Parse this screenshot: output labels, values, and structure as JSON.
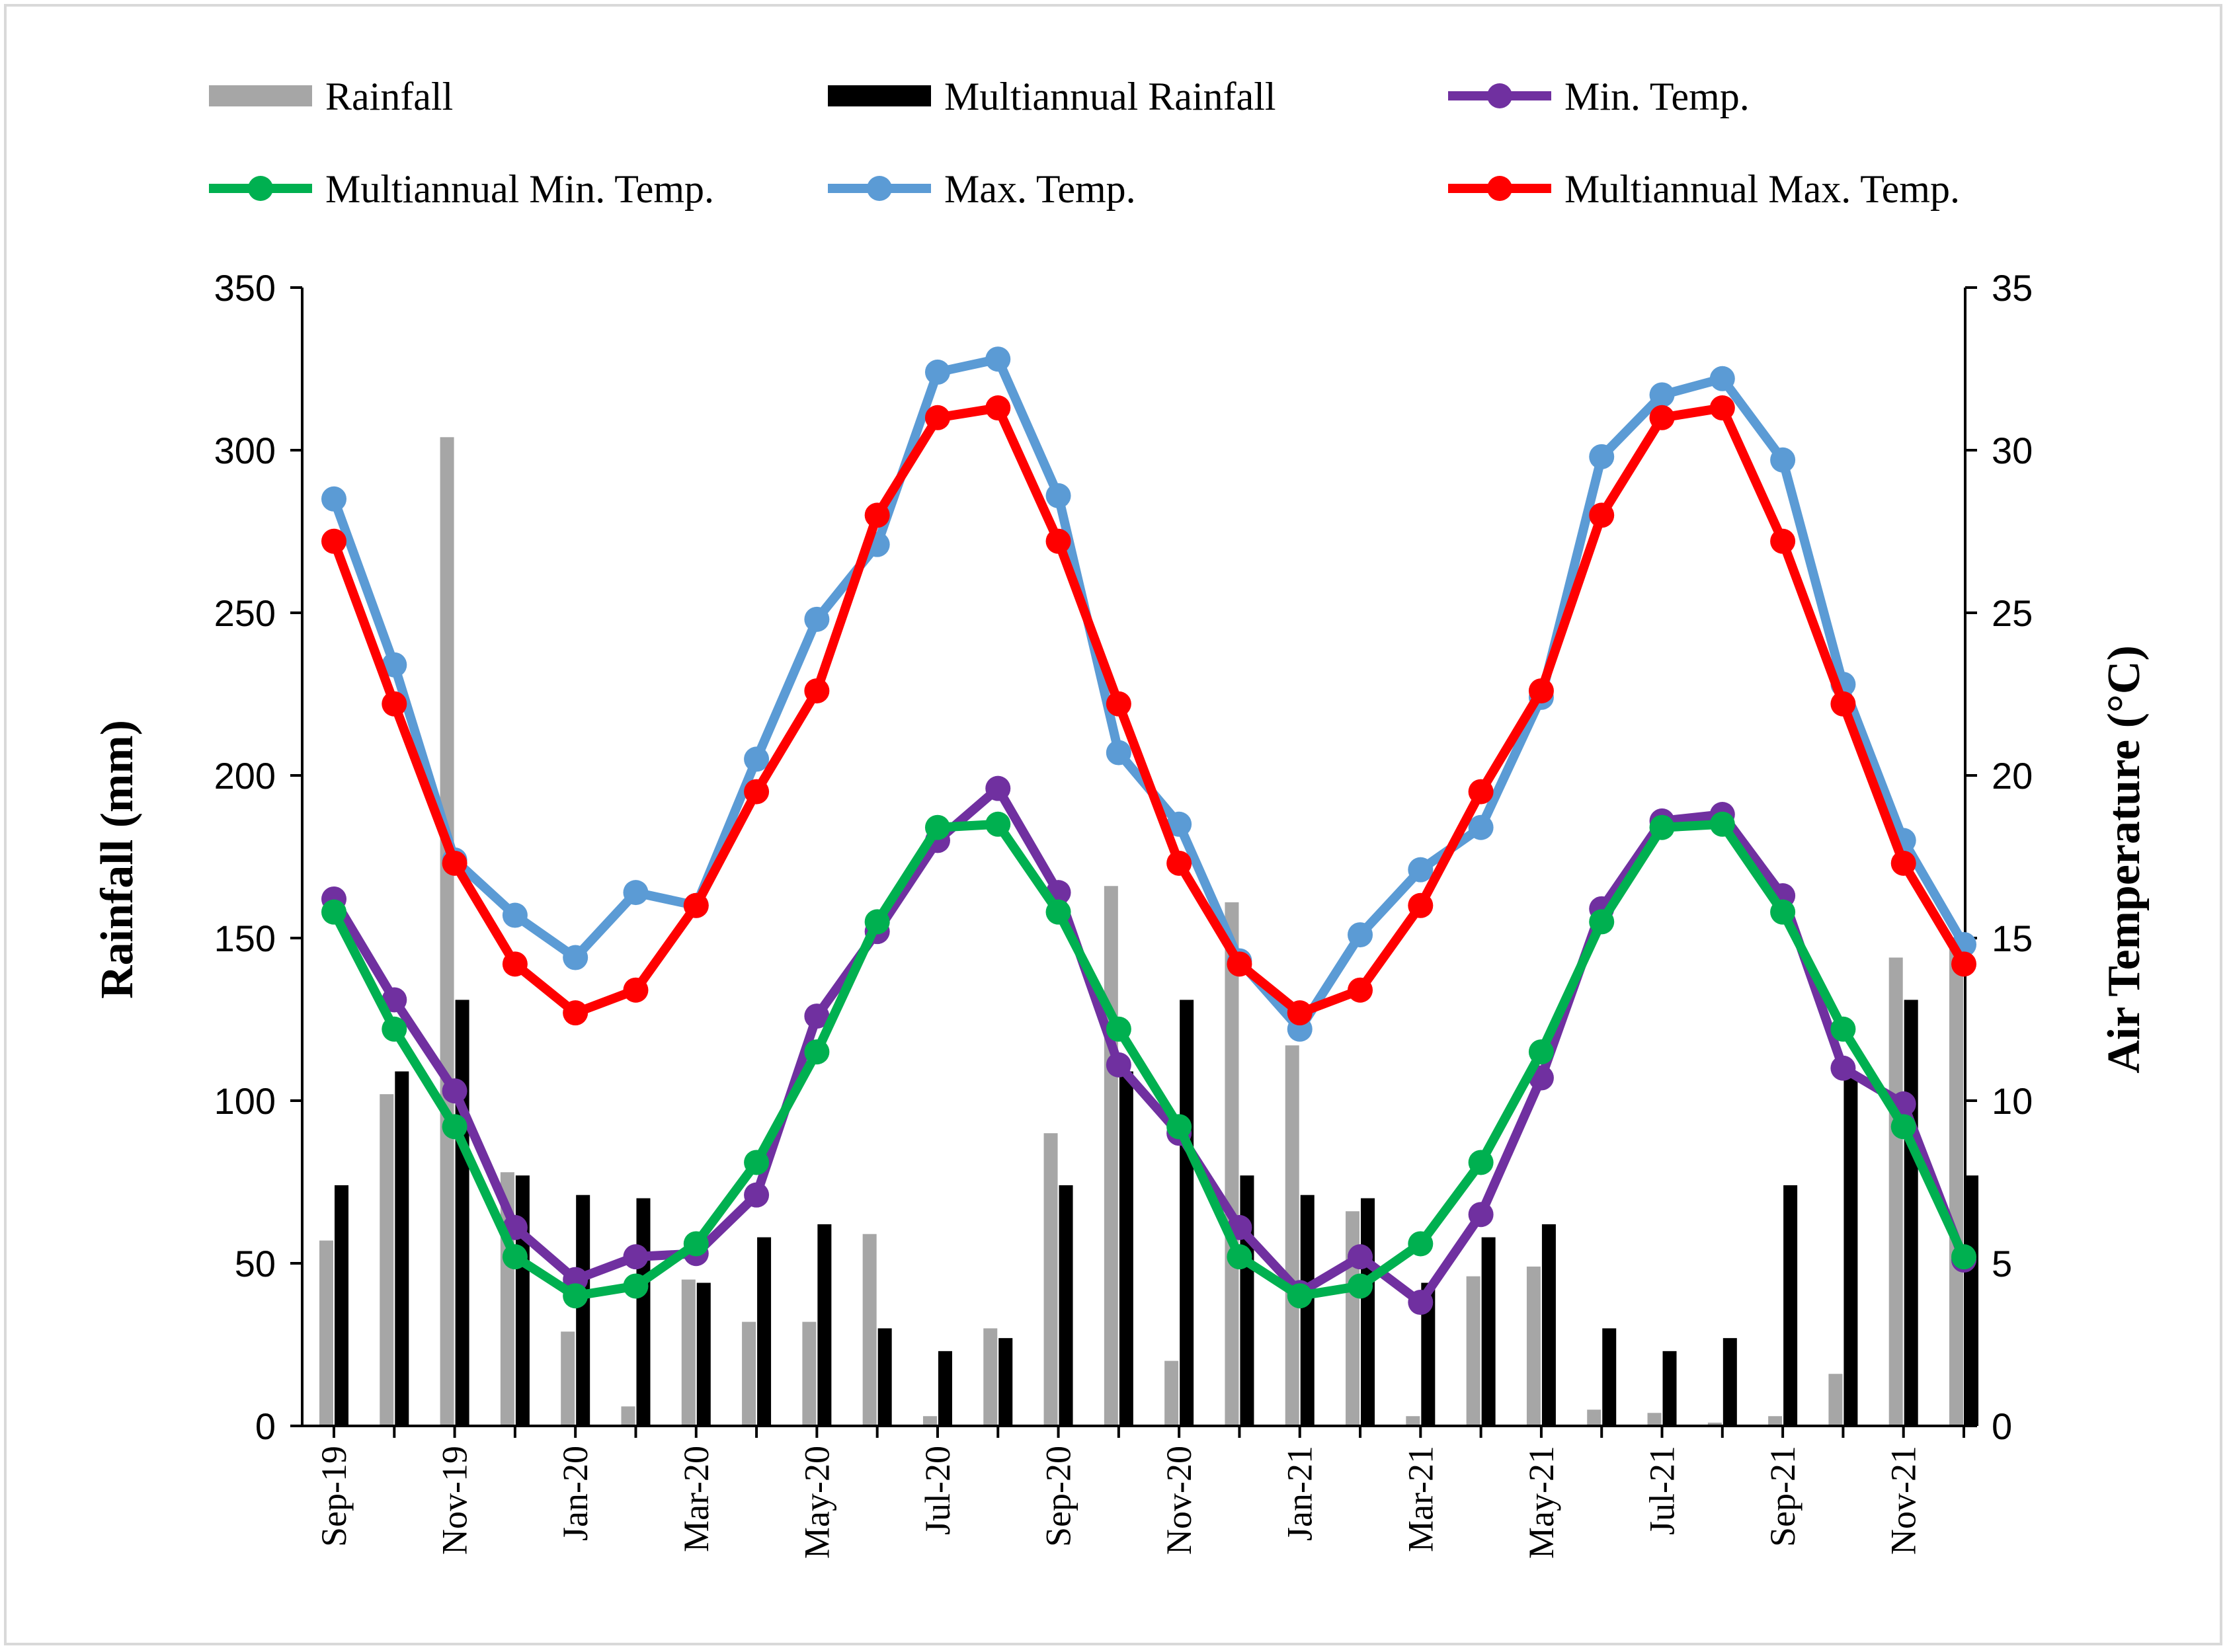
{
  "chart_data": {
    "type": "bar",
    "categories": [
      "Sep-19",
      "Oct-19",
      "Nov-19",
      "Dec-19",
      "Jan-20",
      "Feb-20",
      "Mar-20",
      "Apr-20",
      "May-20",
      "Jun-20",
      "Jul-20",
      "Aug-20",
      "Sep-20",
      "Oct-20",
      "Nov-20",
      "Dec-20",
      "Jan-21",
      "Feb-21",
      "Mar-21",
      "Apr-21",
      "May-21",
      "Jun-21",
      "Jul-21",
      "Aug-21",
      "Sep-21",
      "Oct-21",
      "Nov-21",
      "Dec-21"
    ],
    "tick_labels": [
      "Sep-19",
      "Nov-19",
      "Jan-20",
      "Mar-20",
      "May-20",
      "Jul-20",
      "Sep-20",
      "Nov-20",
      "Jan-21",
      "Mar-21",
      "May-21",
      "Jul-21",
      "Sep-21",
      "Nov-21"
    ],
    "ylabel": "Rainfall (mm)",
    "y2label": "Air Temperature (°C)",
    "ylim": [
      0,
      350
    ],
    "y2lim": [
      0,
      35
    ],
    "yticks": [
      0,
      50,
      100,
      150,
      200,
      250,
      300,
      350
    ],
    "y2ticks": [
      0,
      5,
      10,
      15,
      20,
      25,
      30,
      35
    ],
    "legend_position": "top",
    "series": [
      {
        "name": "Rainfall",
        "kind": "bar",
        "axis": "left",
        "color": "#a6a6a6",
        "values": [
          57,
          102,
          304,
          78,
          29,
          6,
          45,
          32,
          32,
          59,
          3,
          30,
          90,
          166,
          20,
          161,
          117,
          66,
          3,
          46,
          49,
          5,
          4,
          1,
          3,
          16,
          144,
          150
        ]
      },
      {
        "name": "Multiannual Rainfall",
        "kind": "bar",
        "axis": "left",
        "color": "#000000",
        "values": [
          74,
          109,
          131,
          77,
          71,
          70,
          44,
          58,
          62,
          30,
          23,
          27,
          74,
          109,
          131,
          77,
          71,
          70,
          44,
          58,
          62,
          30,
          23,
          27,
          74,
          109,
          131,
          77
        ]
      },
      {
        "name": "Min. Temp.",
        "kind": "line",
        "axis": "right",
        "color": "#7030a0",
        "values": [
          16.2,
          13.1,
          10.3,
          6.1,
          4.5,
          5.2,
          5.3,
          7.1,
          12.6,
          15.2,
          18.0,
          19.6,
          16.4,
          11.1,
          9.0,
          6.1,
          4.1,
          5.2,
          3.8,
          6.5,
          10.7,
          15.9,
          18.6,
          18.8,
          16.3,
          11.0,
          9.9,
          5.1
        ]
      },
      {
        "name": "Multiannual Min. Temp.",
        "kind": "line",
        "axis": "right",
        "color": "#00b050",
        "values": [
          15.8,
          12.2,
          9.2,
          5.2,
          4.0,
          4.3,
          5.6,
          8.1,
          11.5,
          15.5,
          18.4,
          18.5,
          15.8,
          12.2,
          9.2,
          5.2,
          4.0,
          4.3,
          5.6,
          8.1,
          11.5,
          15.5,
          18.4,
          18.5,
          15.8,
          12.2,
          9.2,
          5.2
        ]
      },
      {
        "name": "Max. Temp.",
        "kind": "line",
        "axis": "right",
        "color": "#5b9bd5",
        "values": [
          28.5,
          23.4,
          17.4,
          15.7,
          14.4,
          16.4,
          16.0,
          20.5,
          24.8,
          27.1,
          32.4,
          32.8,
          28.6,
          20.7,
          18.5,
          14.3,
          12.2,
          15.1,
          17.1,
          18.4,
          22.4,
          29.8,
          31.7,
          32.2,
          29.7,
          22.8,
          18.0,
          14.8
        ]
      },
      {
        "name": "Multiannual Max. Temp.",
        "kind": "line",
        "axis": "right",
        "color": "#ff0000",
        "values": [
          27.2,
          22.2,
          17.3,
          14.2,
          12.7,
          13.4,
          16.0,
          19.5,
          22.6,
          28.0,
          31.0,
          31.3,
          27.2,
          22.2,
          17.3,
          14.2,
          12.7,
          13.4,
          16.0,
          19.5,
          22.6,
          28.0,
          31.0,
          31.3,
          27.2,
          22.2,
          17.3,
          14.2
        ]
      }
    ]
  }
}
